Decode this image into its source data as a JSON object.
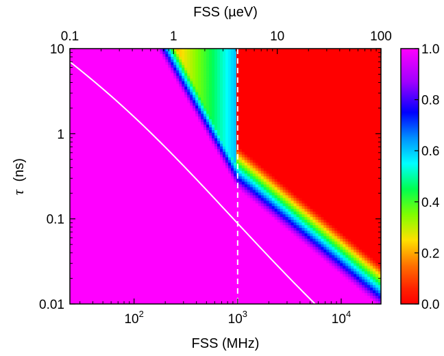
{
  "chart_data": {
    "type": "heatmap",
    "x_bottom": {
      "label": "FSS (MHz)",
      "scale": "log",
      "range": [
        24,
        24200
      ],
      "ticks": [
        100,
        1000,
        10000
      ],
      "tick_labels": [
        {
          "base": "10",
          "exp": "2"
        },
        {
          "base": "10",
          "exp": "3"
        },
        {
          "base": "10",
          "exp": "4"
        }
      ]
    },
    "x_top": {
      "label": "FSS (µeV)",
      "scale": "log",
      "range": [
        0.1,
        100
      ],
      "ticks": [
        0.1,
        1,
        10,
        100
      ],
      "tick_labels": [
        "0.1",
        "1",
        "10",
        "100"
      ]
    },
    "y": {
      "label": "τ (ns)",
      "label_symbol": "τ",
      "label_unit": "(ns)",
      "scale": "log",
      "range": [
        0.01,
        10
      ],
      "ticks": [
        0.01,
        0.1,
        1,
        10
      ],
      "tick_labels": [
        "0.01",
        "0.1",
        "1",
        "10"
      ]
    },
    "colorbar": {
      "range": [
        0.0,
        1.0
      ],
      "ticks": [
        0.0,
        0.2,
        0.4,
        0.6,
        0.8,
        1.0
      ],
      "tick_labels": [
        "0.0",
        "0.2",
        "0.4",
        "0.6",
        "0.8",
        "1.0"
      ],
      "colormap": "red-yellow-green-cyan-blue-magenta"
    },
    "annotations": {
      "dashed_vertical_line_fss_mhz": 1000,
      "white_curve": [
        {
          "fss_mhz": 24,
          "tau_ns": 7.0
        },
        {
          "fss_mhz": 5600,
          "tau_ns": 0.01
        }
      ]
    },
    "contour_band_center": [
      {
        "fss_mhz": 220,
        "tau_ns": 10
      },
      {
        "fss_mhz": 1000,
        "tau_ns": 0.4
      },
      {
        "fss_mhz": 24200,
        "tau_ns": 0.016
      }
    ]
  }
}
